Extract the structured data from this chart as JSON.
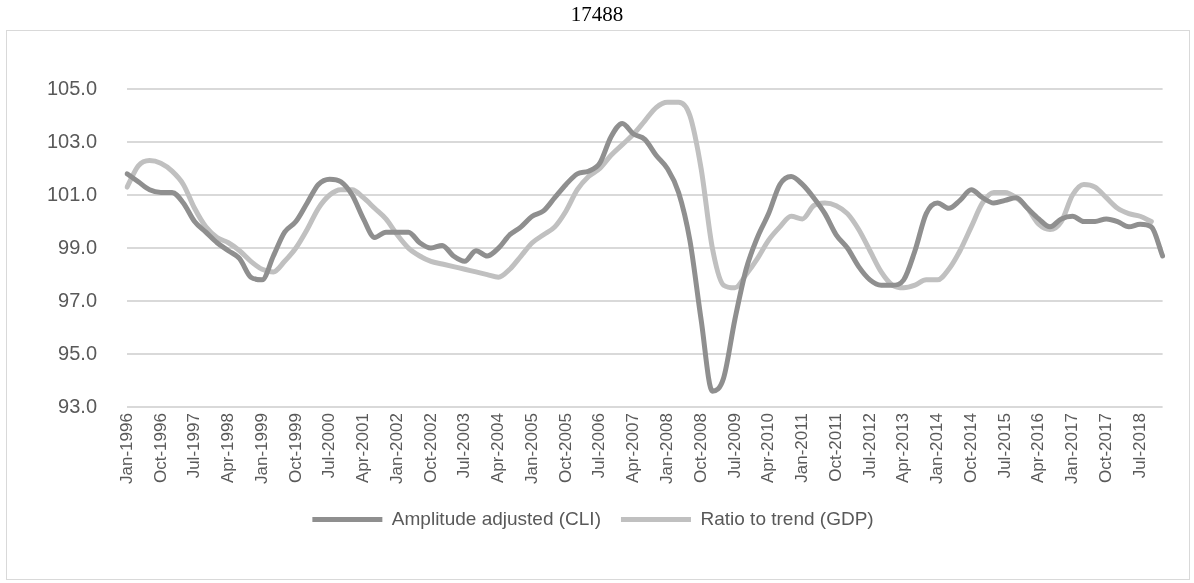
{
  "chart_data": {
    "type": "line",
    "title": "17488",
    "categories": [
      "Jan-1996",
      null,
      null,
      "Oct-1996",
      null,
      null,
      "Jul-1997",
      null,
      null,
      "Apr-1998",
      null,
      null,
      "Jan-1999",
      null,
      null,
      "Oct-1999",
      null,
      null,
      "Jul-2000",
      null,
      null,
      "Apr-2001",
      null,
      null,
      "Jan-2002",
      null,
      null,
      "Oct-2002",
      null,
      null,
      "Jul-2003",
      null,
      null,
      "Apr-2004",
      null,
      null,
      "Jan-2005",
      null,
      null,
      "Oct-2005",
      null,
      null,
      "Jul-2006",
      null,
      null,
      "Apr-2007",
      null,
      null,
      "Jan-2008",
      null,
      null,
      "Oct-2008",
      null,
      null,
      "Jul-2009",
      null,
      null,
      "Apr-2010",
      null,
      null,
      "Jan-2011",
      null,
      null,
      "Oct-2011",
      null,
      null,
      "Jul-2012",
      null,
      null,
      "Apr-2013",
      null,
      null,
      "Jan-2014",
      null,
      null,
      "Oct-2014",
      null,
      null,
      "Jul-2015",
      null,
      null,
      "Apr-2016",
      null,
      null,
      "Jan-2017",
      null,
      null,
      "Oct-2017",
      null,
      null,
      "Jul-2018",
      null,
      null
    ],
    "series": [
      {
        "name": "Amplitude adjusted (CLI)",
        "color": "#8f8f8f",
        "values": [
          101.8,
          101.5,
          101.2,
          101.1,
          101.1,
          100.7,
          100.0,
          99.6,
          99.2,
          98.9,
          98.6,
          97.9,
          97.8,
          98.7,
          99.6,
          100.0,
          100.7,
          101.4,
          101.6,
          101.5,
          101.0,
          100.1,
          99.4,
          99.6,
          99.6,
          99.6,
          99.2,
          99.0,
          99.1,
          98.7,
          98.5,
          98.9,
          98.7,
          99.0,
          99.5,
          99.8,
          100.2,
          100.4,
          100.9,
          101.4,
          101.8,
          101.9,
          102.2,
          103.2,
          103.7,
          103.3,
          103.1,
          102.5,
          102.0,
          101.1,
          99.3,
          96.3,
          93.6,
          94.1,
          96.3,
          98.2,
          99.4,
          100.3,
          101.4,
          101.7,
          101.4,
          100.9,
          100.3,
          99.5,
          99.0,
          98.3,
          97.8,
          97.6,
          97.6,
          97.8,
          98.9,
          100.3,
          100.7,
          100.5,
          100.8,
          101.2,
          100.9,
          100.7,
          100.8,
          100.9,
          100.5,
          100.1,
          99.8,
          100.1,
          100.2,
          100.0,
          100.0,
          100.1,
          100.0,
          99.8,
          99.9,
          99.8,
          98.7
        ]
      },
      {
        "name": "Ratio to trend (GDP)",
        "color": "#c0c0c0",
        "values": [
          101.3,
          102.1,
          102.3,
          102.2,
          101.9,
          101.4,
          100.5,
          99.8,
          99.4,
          99.2,
          98.9,
          98.5,
          98.2,
          98.1,
          98.5,
          99.0,
          99.7,
          100.5,
          101.0,
          101.2,
          101.2,
          100.9,
          100.5,
          100.1,
          99.5,
          99.0,
          98.7,
          98.5,
          98.4,
          98.3,
          98.2,
          98.1,
          98.0,
          97.9,
          98.2,
          98.7,
          99.2,
          99.5,
          99.8,
          100.4,
          101.2,
          101.7,
          102.0,
          102.5,
          102.9,
          103.3,
          103.8,
          104.3,
          104.5,
          104.5,
          104.0,
          102.0,
          99.0,
          97.6,
          97.5,
          98.0,
          98.6,
          99.3,
          99.8,
          100.2,
          100.1,
          100.6,
          100.7,
          100.6,
          100.3,
          99.7,
          98.9,
          98.1,
          97.6,
          97.5,
          97.6,
          97.8,
          97.8,
          98.2,
          98.9,
          99.8,
          100.7,
          101.1,
          101.1,
          100.9,
          100.5,
          99.9,
          99.7,
          100.0,
          101.0,
          101.4,
          101.3,
          100.9,
          100.5,
          100.3,
          100.2,
          100.0,
          null
        ]
      }
    ],
    "ylim": [
      93,
      105
    ],
    "yticks": [
      {
        "value": 93,
        "label": "93.0"
      },
      {
        "value": 95,
        "label": "95.0"
      },
      {
        "value": 97,
        "label": "97.0"
      },
      {
        "value": 99,
        "label": "99.0"
      },
      {
        "value": 101,
        "label": "101.0"
      },
      {
        "value": 103,
        "label": "103.0"
      },
      {
        "value": 105,
        "label": "105.0"
      }
    ],
    "grid": "y",
    "legend": "bottom",
    "marker": "none",
    "line_style": "solid"
  }
}
